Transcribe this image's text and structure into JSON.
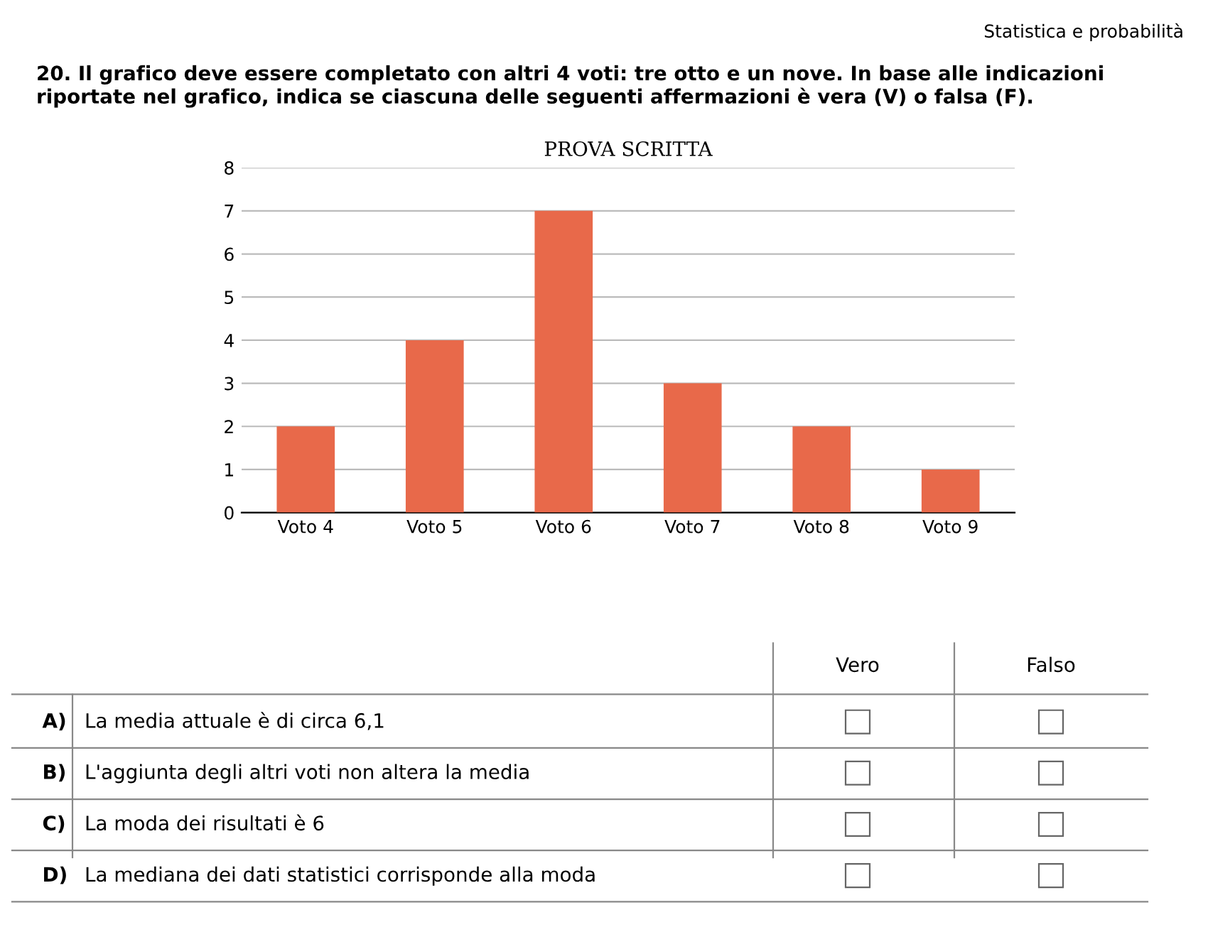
{
  "chart_data": {
    "type": "bar",
    "title": "PROVA SCRITTA",
    "categories": [
      "Voto 4",
      "Voto 5",
      "Voto 6",
      "Voto 7",
      "Voto 8",
      "Voto 9"
    ],
    "values": [
      2,
      4,
      7,
      3,
      2,
      1
    ],
    "color": "#e8694a",
    "ylim": [
      0,
      8
    ],
    "yticks": [
      0,
      1,
      2,
      3,
      4,
      5,
      6,
      7,
      8
    ],
    "grid": "y",
    "annotations": [
      "Statistica e probabilità",
      "20. Il grafico deve essere completato con altri 4 voti: tre otto e un nove. In base alle indicazioni riportate nel grafico, indica se ciascuna delle seguenti affermazioni è vera (V) o falsa (F).",
      "Vero",
      "Falso",
      "A)",
      "La media attuale è di circa 6,1",
      "B)",
      "L'aggiunta degli altri voti non altera la media",
      "C)",
      "La moda dei risultati è 6",
      "D)",
      "La mediana dei dati statistici corrisponde alla moda"
    ]
  }
}
